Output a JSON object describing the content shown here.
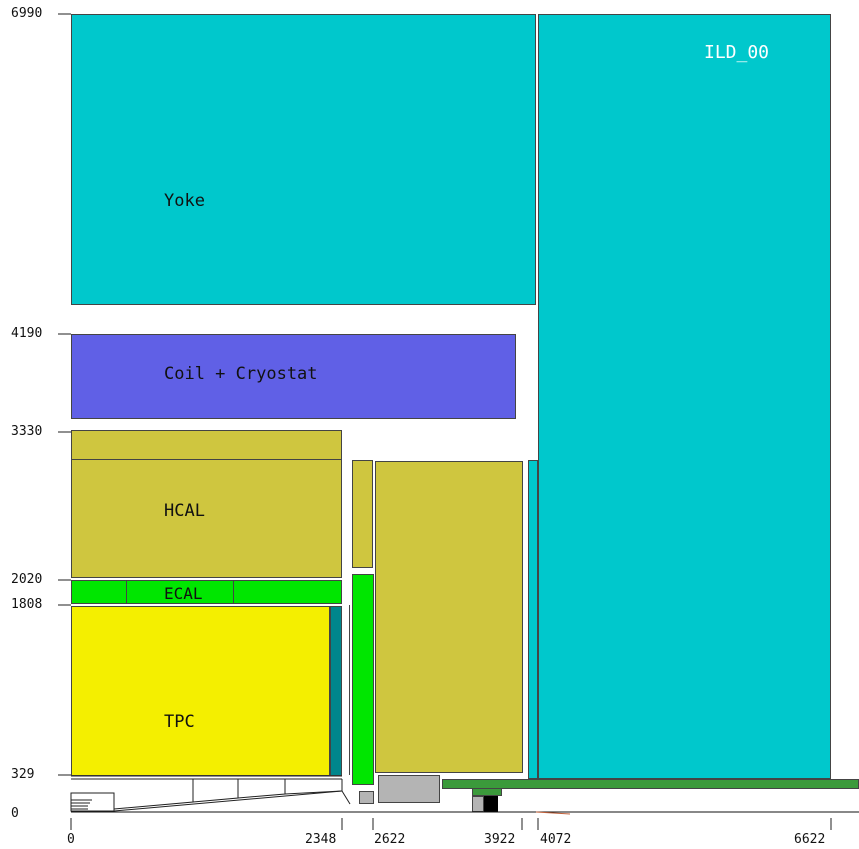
{
  "title": "ILD_00",
  "labels": {
    "yoke": "Yoke",
    "coil": "Coil + Cryostat",
    "hcal": "HCAL",
    "ecal": "ECAL",
    "tpc": "TPC"
  },
  "axes": {
    "y_ticks": [
      "6990",
      "4190",
      "3330",
      "2020",
      "1808",
      "329",
      "0"
    ],
    "x_ticks": [
      "0",
      "2348",
      "2622",
      "3922",
      "4072",
      "6622"
    ]
  },
  "colors": {
    "yoke": "#00c8cc",
    "coil": "#6060e6",
    "hcal": "#cfc63f",
    "ecal": "#00e600",
    "tpc": "#f4ef00",
    "tpc_edge": "#00868c",
    "beampipe_green": "#3b9a3b",
    "support_gray": "#b4b4b4"
  }
}
